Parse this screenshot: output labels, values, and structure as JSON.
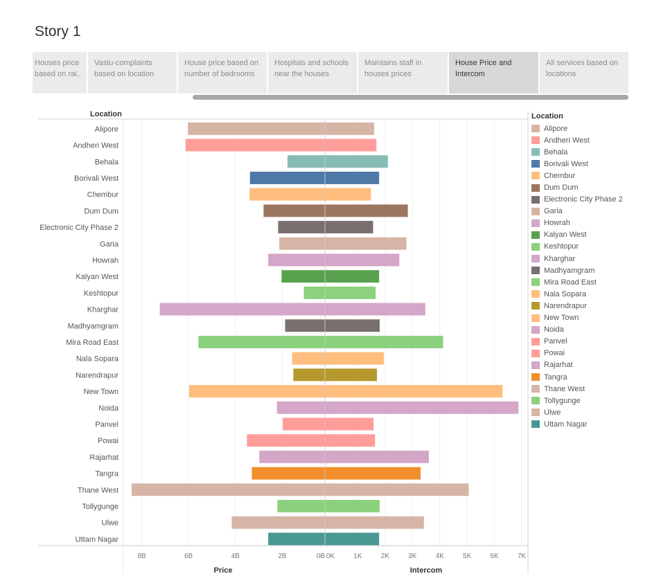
{
  "story": {
    "title": "Story 1"
  },
  "tabs": [
    {
      "label": "Houses price based on rai..",
      "active": false
    },
    {
      "label": "Vastu-complaints based on location",
      "active": false
    },
    {
      "label": "House price based on number of bedrooms",
      "active": false
    },
    {
      "label": "Hospitals and schools near the houses",
      "active": false
    },
    {
      "label": "Maintains staff in houses prices",
      "active": false
    },
    {
      "label": "House Price and Intercom",
      "active": true
    },
    {
      "label": "All services based on locations",
      "active": false
    }
  ],
  "chart_data": {
    "type": "bar",
    "row_header": "Location",
    "categories": [
      "Alipore",
      "Andheri West",
      "Behala",
      "Borivali West",
      "Chembur",
      "Dum Dum",
      "Electronic City Phase 2",
      "Garia",
      "Howrah",
      "Kalyan West",
      "Keshtopur",
      "Kharghar",
      "Madhyamgram",
      "Mira Road East",
      "Nala Sopara",
      "Narendrapur",
      "New Town",
      "Noida",
      "Panvel",
      "Powai",
      "Rajarhat",
      "Tangra",
      "Thane West",
      "Tollygunge",
      "Ulwe",
      "Uttam Nagar"
    ],
    "colors": [
      "#d7b5a6",
      "#ff9d9a",
      "#86bcb6",
      "#4e79a7",
      "#ffbe7d",
      "#9d7660",
      "#79706e",
      "#d7b5a6",
      "#d4a6c8",
      "#59a14f",
      "#8cd17d",
      "#d4a6c8",
      "#79706e",
      "#8cd17d",
      "#ffbe7d",
      "#b6992d",
      "#ffbe7d",
      "#d4a6c8",
      "#ff9d9a",
      "#ff9d9a",
      "#d4a6c8",
      "#f28e2b",
      "#d7b5a6",
      "#8cd17d",
      "#d7b5a6",
      "#499894"
    ],
    "series": [
      {
        "name": "Price",
        "axis_title": "Price",
        "direction": "left",
        "ticks": [
          "8B",
          "6B",
          "4B",
          "2B",
          "0B"
        ],
        "xlim": [
          0,
          8.4
        ],
        "values": [
          5.85,
          5.95,
          1.6,
          3.2,
          3.22,
          2.62,
          2.0,
          1.95,
          2.42,
          1.85,
          0.9,
          7.05,
          1.7,
          5.4,
          1.4,
          1.35,
          5.8,
          2.05,
          1.8,
          3.33,
          2.8,
          3.12,
          8.25,
          2.03,
          3.98,
          2.42
        ]
      },
      {
        "name": "Intercom",
        "axis_title": "Intercom",
        "direction": "right",
        "ticks": [
          "0K",
          "1K",
          "2K",
          "3K",
          "4K",
          "5K",
          "6K",
          "7K"
        ],
        "xlim": [
          0,
          7.2
        ],
        "values": [
          1.6,
          1.68,
          2.1,
          1.78,
          1.48,
          2.83,
          1.56,
          2.78,
          2.52,
          1.78,
          1.65,
          3.47,
          1.8,
          4.12,
          1.95,
          1.7,
          6.3,
          6.88,
          1.58,
          1.63,
          3.6,
          3.3,
          5.06,
          1.8,
          3.42,
          1.78
        ]
      }
    ],
    "legend": {
      "title": "Location",
      "position": "right",
      "entries": [
        "Alipore",
        "Andheri West",
        "Behala",
        "Borivali West",
        "Chembur",
        "Dum Dum",
        "Electronic City Phase 2",
        "Garia",
        "Howrah",
        "Kalyan West",
        "Keshtopur",
        "Kharghar",
        "Madhyamgram",
        "Mira Road East",
        "Nala Sopara",
        "Narendrapur",
        "New Town",
        "Noida",
        "Panvel",
        "Powai",
        "Rajarhat",
        "Tangra",
        "Thane West",
        "Tollygunge",
        "Ulwe",
        "Uttam Nagar"
      ],
      "colors": [
        "#d7b5a6",
        "#ff9d9a",
        "#86bcb6",
        "#4e79a7",
        "#ffbe7d",
        "#9d7660",
        "#79706e",
        "#d7b5a6",
        "#d4a6c8",
        "#59a14f",
        "#8cd17d",
        "#d4a6c8",
        "#79706e",
        "#8cd17d",
        "#ffbe7d",
        "#b6992d",
        "#ffbe7d",
        "#d4a6c8",
        "#ff9d9a",
        "#ff9d9a",
        "#d4a6c8",
        "#f28e2b",
        "#d7b5a6",
        "#8cd17d",
        "#d7b5a6",
        "#499894"
      ]
    },
    "grid": true
  }
}
